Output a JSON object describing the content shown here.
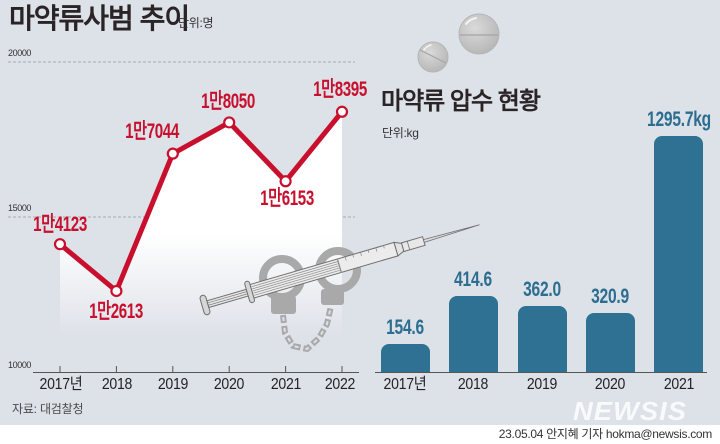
{
  "chart_data": [
    {
      "type": "line",
      "title": "마약류사범 추이",
      "subtitle": "단위:명",
      "categories": [
        "2017년",
        "2018",
        "2019",
        "2020",
        "2021",
        "2022"
      ],
      "values": [
        14123,
        12613,
        17044,
        18050,
        16153,
        18395
      ],
      "value_labels": [
        "1만4123",
        "1만2613",
        "1만7044",
        "1만8050",
        "1만6153",
        "1만8395"
      ],
      "yticks": [
        10000,
        15000,
        20000
      ],
      "ytick_labels": [
        "10000",
        "15000",
        "20000"
      ],
      "ylim": [
        10000,
        20000
      ],
      "xlabel": "",
      "ylabel": "",
      "grid": true,
      "legend": "none",
      "color": "#c8102e"
    },
    {
      "type": "bar",
      "title": "마약류 압수 현황",
      "subtitle": "단위:kg",
      "categories": [
        "2017년",
        "2018",
        "2019",
        "2020",
        "2021"
      ],
      "values": [
        154.6,
        414.6,
        362.0,
        320.9,
        1295.7
      ],
      "value_labels": [
        "154.6",
        "414.6",
        "362.0",
        "320.9",
        "1295.7kg"
      ],
      "xlabel": "",
      "ylabel": "",
      "grid": false,
      "legend": "none",
      "color": "#2e7193"
    }
  ],
  "footer": {
    "source": "자료: 대검찰청",
    "credit": "23.05.04 안지혜 기자 hokma@newsis.com",
    "watermark": "NEWSIS"
  },
  "illustrations": {
    "pills": "pill-icon",
    "syringe": "syringe-icon",
    "handcuffs": "handcuffs-icon"
  },
  "colors": {
    "background": "#dde1e8",
    "line": "#c8102e",
    "bar": "#2e7193",
    "bar_label": "#2c6d90",
    "title": "#2a2426"
  }
}
